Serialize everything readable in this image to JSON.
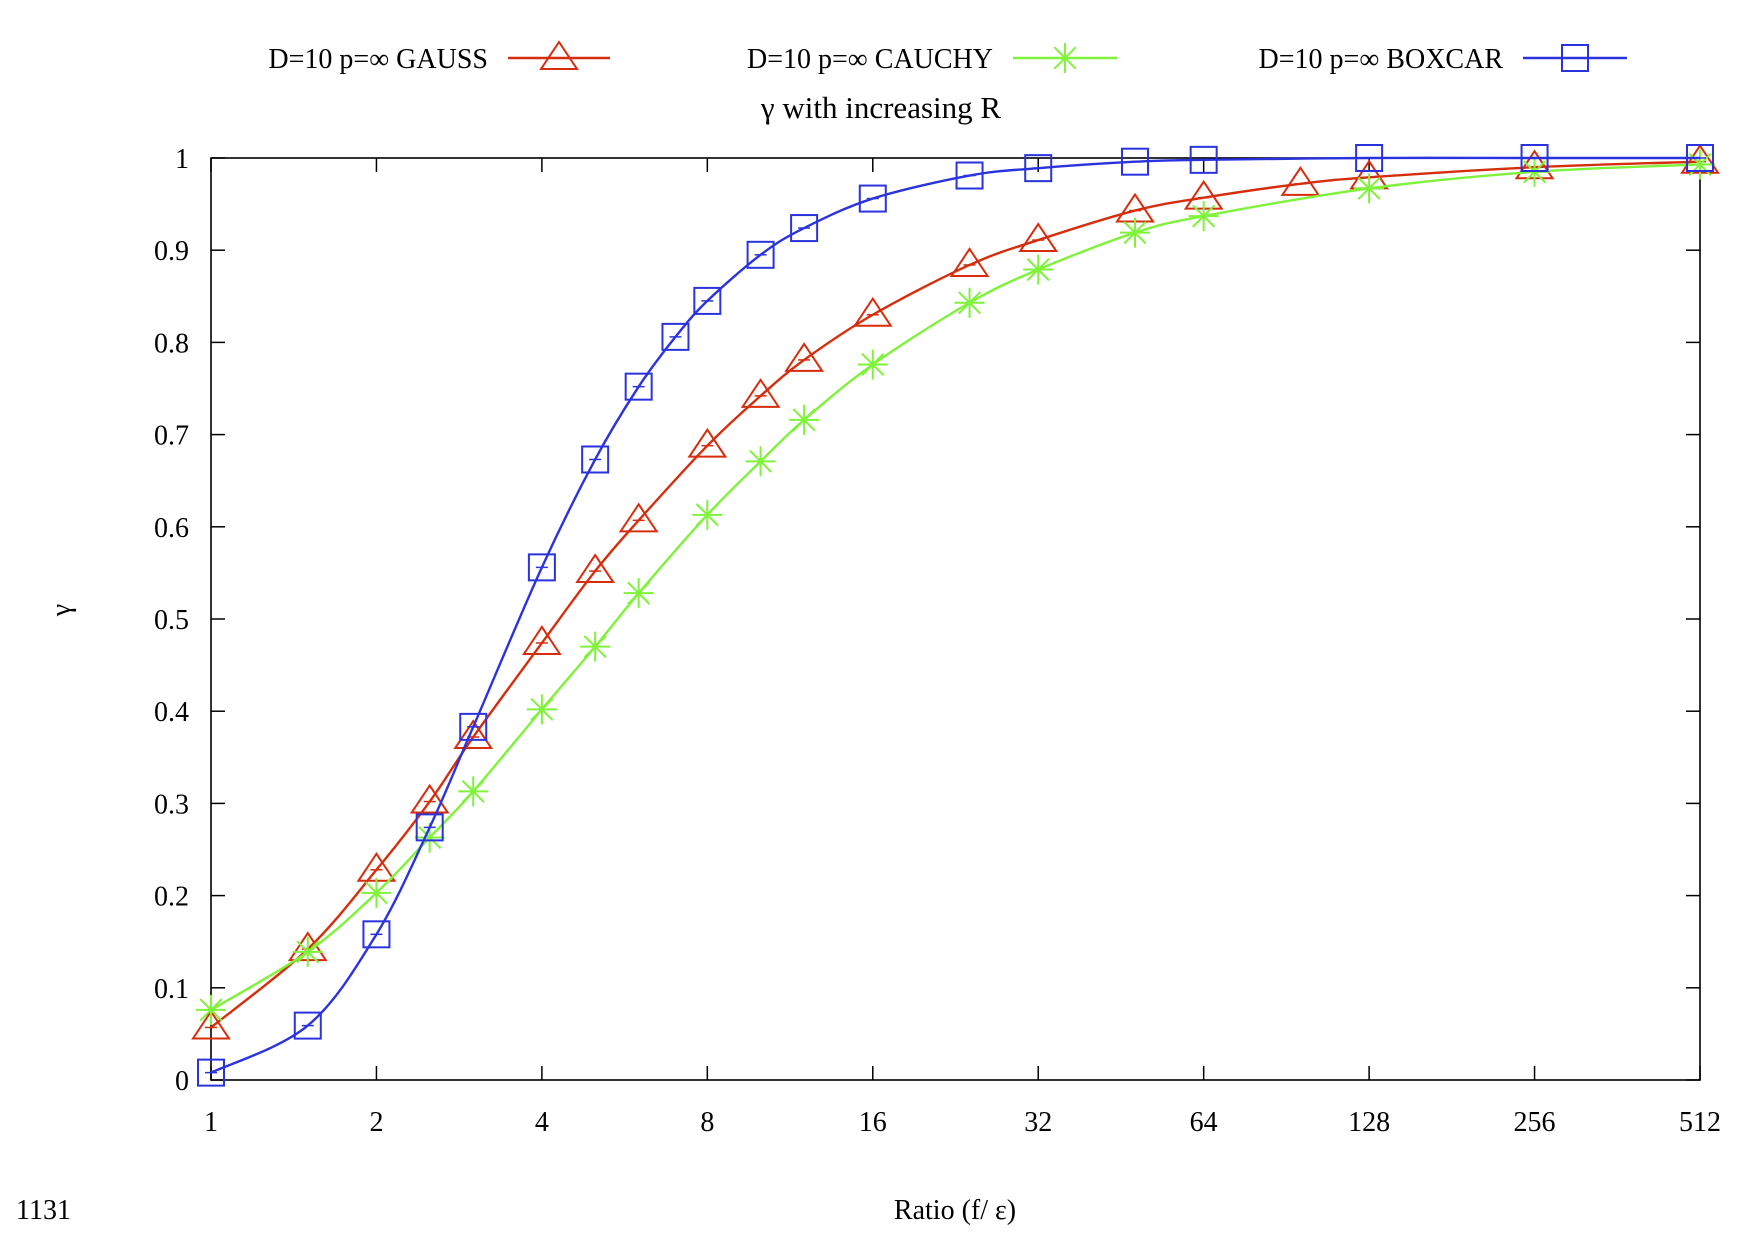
{
  "page_number": "1131",
  "chart_data": {
    "type": "line",
    "title": "γ with increasing R",
    "xlabel": "Ratio  (f/ ε)",
    "ylabel": "γ",
    "x_scale": "log2",
    "xlim": [
      1,
      512
    ],
    "ylim": [
      0,
      1
    ],
    "xticks": [
      1,
      2,
      4,
      8,
      16,
      32,
      64,
      128,
      256,
      512
    ],
    "yticks": [
      0,
      0.1,
      0.2,
      0.3,
      0.4,
      0.5,
      0.6,
      0.7,
      0.8,
      0.9,
      1
    ],
    "ytick_labels": [
      "0",
      "0.1",
      "0.2",
      "0.3",
      "0.4",
      "0.5",
      "0.6",
      "0.7",
      "0.8",
      "0.9",
      "1"
    ],
    "grid": false,
    "legend_position": "top",
    "series": [
      {
        "name": "D=10 p=∞ GAUSS",
        "color": "#d62d0c",
        "marker": "triangle",
        "x": [
          1,
          1.5,
          2,
          2.5,
          3,
          4,
          5,
          6,
          8,
          10,
          12,
          16,
          24,
          32,
          48,
          64,
          96,
          128,
          256,
          512
        ],
        "y": [
          0.057,
          0.142,
          0.228,
          0.302,
          0.372,
          0.474,
          0.552,
          0.607,
          0.688,
          0.742,
          0.781,
          0.83,
          0.884,
          0.911,
          0.943,
          0.957,
          0.972,
          0.979,
          0.99,
          0.996
        ]
      },
      {
        "name": "D=10 p=∞ CAUCHY",
        "color": "#7ff23a",
        "marker": "star",
        "x": [
          1,
          1.5,
          2,
          2.5,
          3,
          4,
          5,
          6,
          8,
          10,
          12,
          16,
          24,
          32,
          48,
          64,
          128,
          256,
          512
        ],
        "y": [
          0.076,
          0.139,
          0.203,
          0.263,
          0.313,
          0.402,
          0.47,
          0.528,
          0.613,
          0.671,
          0.716,
          0.776,
          0.843,
          0.879,
          0.919,
          0.937,
          0.967,
          0.985,
          0.993
        ]
      },
      {
        "name": "D=10 p=∞ BOXCAR",
        "color": "#2a33dd",
        "marker": "square",
        "x": [
          1,
          1.5,
          2,
          2.5,
          3,
          4,
          5,
          6,
          7,
          8,
          10,
          12,
          16,
          24,
          32,
          48,
          64,
          128,
          256,
          512
        ],
        "y": [
          0.008,
          0.059,
          0.158,
          0.274,
          0.383,
          0.556,
          0.673,
          0.752,
          0.806,
          0.845,
          0.895,
          0.924,
          0.956,
          0.981,
          0.989,
          0.996,
          0.998,
          1.0,
          1.0,
          1.0
        ]
      }
    ]
  }
}
